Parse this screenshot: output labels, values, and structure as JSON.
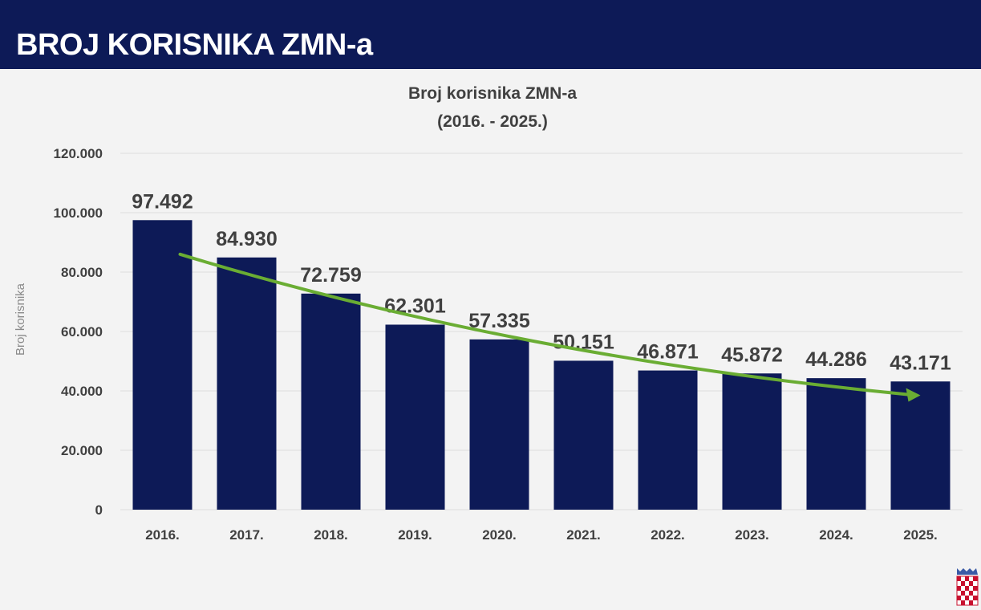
{
  "header": {
    "title": "BROJ KORISNIKA ZMN-a"
  },
  "colors": {
    "header_bg": "#0d1a57",
    "bar": "#0d1a57",
    "trend_arrow": "#6aad33",
    "gridline": "#dcdcdc"
  },
  "chart_data": {
    "type": "bar",
    "title_lines": [
      "Broj korisnika ZMN-a",
      "(2016. - 2025.)"
    ],
    "xlabel": "",
    "ylabel": "Broj korisnika",
    "categories": [
      "2016.",
      "2017.",
      "2018.",
      "2019.",
      "2020.",
      "2021.",
      "2022.",
      "2023.",
      "2024.",
      "2025."
    ],
    "values": [
      97492,
      84930,
      72759,
      62301,
      57335,
      50151,
      46871,
      45872,
      44286,
      43171
    ],
    "data_labels": [
      "97.492",
      "84.930",
      "72.759",
      "62.301",
      "57.335",
      "50.151",
      "46.871",
      "45.872",
      "44.286",
      "43.171"
    ],
    "ylim": [
      0,
      120000
    ],
    "yticks": [
      0,
      20000,
      40000,
      60000,
      80000,
      100000,
      120000
    ],
    "ytick_labels": [
      "0",
      "20.000",
      "40.000",
      "60.000",
      "80.000",
      "100.000",
      "120.000"
    ],
    "grid": true,
    "trend_arrow": {
      "from_value": 86000,
      "to_value": 38500,
      "from_category": "2016.",
      "to_category": "2025."
    }
  },
  "icons": {
    "corner": "croatian-coat-of-arms-icon"
  }
}
